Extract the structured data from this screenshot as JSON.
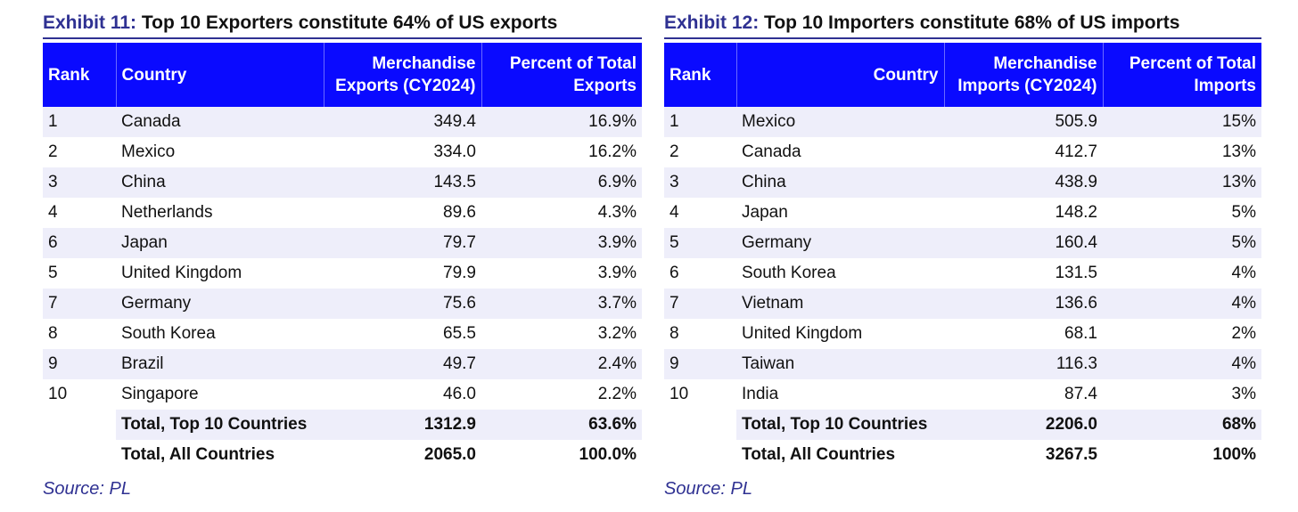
{
  "exhibits": [
    {
      "number": "Exhibit 11:",
      "title": "Top 10 Exporters constitute 64% of US exports",
      "headers": {
        "rank": "Rank",
        "country": "Country",
        "value": "Merchandise Exports (CY2024)",
        "percent": "Percent of Total Exports"
      },
      "rows": [
        {
          "rank": "1",
          "country": "Canada",
          "value": "349.4",
          "percent": "16.9%"
        },
        {
          "rank": "2",
          "country": "Mexico",
          "value": "334.0",
          "percent": "16.2%"
        },
        {
          "rank": "3",
          "country": "China",
          "value": "143.5",
          "percent": "6.9%"
        },
        {
          "rank": "4",
          "country": "Netherlands",
          "value": "89.6",
          "percent": "4.3%"
        },
        {
          "rank": "6",
          "country": "Japan",
          "value": "79.7",
          "percent": "3.9%"
        },
        {
          "rank": "5",
          "country": "United Kingdom",
          "value": "79.9",
          "percent": "3.9%"
        },
        {
          "rank": "7",
          "country": "Germany",
          "value": "75.6",
          "percent": "3.7%"
        },
        {
          "rank": "8",
          "country": "South Korea",
          "value": "65.5",
          "percent": "3.2%"
        },
        {
          "rank": "9",
          "country": "Brazil",
          "value": "49.7",
          "percent": "2.4%"
        },
        {
          "rank": "10",
          "country": "Singapore",
          "value": "46.0",
          "percent": "2.2%"
        }
      ],
      "totals": [
        {
          "label": "Total, Top 10 Countries",
          "value": "1312.9",
          "percent": "63.6%"
        },
        {
          "label": "Total, All Countries",
          "value": "2065.0",
          "percent": "100.0%"
        }
      ],
      "source": "Source: PL"
    },
    {
      "number": "Exhibit 12:",
      "title": "Top 10 Importers constitute 68% of US imports",
      "headers": {
        "rank": "Rank",
        "country": "Country",
        "value": "Merchandise Imports (CY2024)",
        "percent": "Percent of Total Imports"
      },
      "rows": [
        {
          "rank": "1",
          "country": "Mexico",
          "value": "505.9",
          "percent": "15%"
        },
        {
          "rank": "2",
          "country": "Canada",
          "value": "412.7",
          "percent": "13%"
        },
        {
          "rank": "3",
          "country": "China",
          "value": "438.9",
          "percent": "13%"
        },
        {
          "rank": "4",
          "country": "Japan",
          "value": "148.2",
          "percent": "5%"
        },
        {
          "rank": "5",
          "country": "Germany",
          "value": "160.4",
          "percent": "5%"
        },
        {
          "rank": "6",
          "country": "South Korea",
          "value": "131.5",
          "percent": "4%"
        },
        {
          "rank": "7",
          "country": "Vietnam",
          "value": "136.6",
          "percent": "4%"
        },
        {
          "rank": "8",
          "country": "United Kingdom",
          "value": "68.1",
          "percent": "2%"
        },
        {
          "rank": "9",
          "country": "Taiwan",
          "value": "116.3",
          "percent": "4%"
        },
        {
          "rank": "10",
          "country": "India",
          "value": "87.4",
          "percent": "3%"
        }
      ],
      "totals": [
        {
          "label": "Total, Top 10 Countries",
          "value": "2206.0",
          "percent": "68%"
        },
        {
          "label": "Total, All Countries",
          "value": "3267.5",
          "percent": "100%"
        }
      ],
      "source": "Source: PL"
    }
  ],
  "colors": {
    "header_bg": "#0a0aff",
    "title_accent": "#2f3192",
    "stripe": "#eeeefa"
  }
}
